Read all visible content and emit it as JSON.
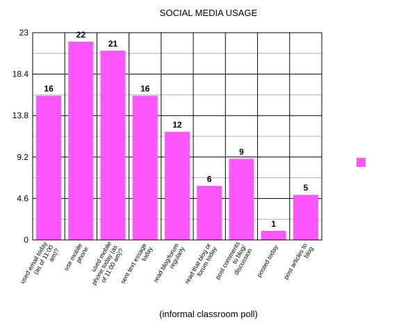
{
  "chart_data": {
    "type": "bar",
    "title": "SOCIAL MEDIA USAGE",
    "xlabel": "(informal classroom poll)",
    "ylabel": "",
    "ylim": [
      0,
      23
    ],
    "yticks": [
      "0",
      "4.6",
      "9.2",
      "13.8",
      "18.4",
      "23"
    ],
    "grid": true,
    "legend": "right",
    "bar_color": "#ff55ff",
    "categories": [
      [
        "used email today",
        "(as of 11:00",
        "am)?"
      ],
      [
        "use mobile",
        "phone"
      ],
      [
        "used mobile",
        "phone today (as",
        "of 11:00 am)?"
      ],
      [
        "sent text essage",
        "today"
      ],
      [
        "read blog/forum",
        "regularly"
      ],
      [
        "read that blog or",
        "forum today"
      ],
      [
        "post comments",
        "to blog/",
        "discussion"
      ],
      [
        "posted today"
      ],
      [
        "post articles to",
        "blog"
      ]
    ],
    "values": [
      16,
      22,
      21,
      16,
      12,
      6,
      9,
      1,
      5
    ]
  }
}
